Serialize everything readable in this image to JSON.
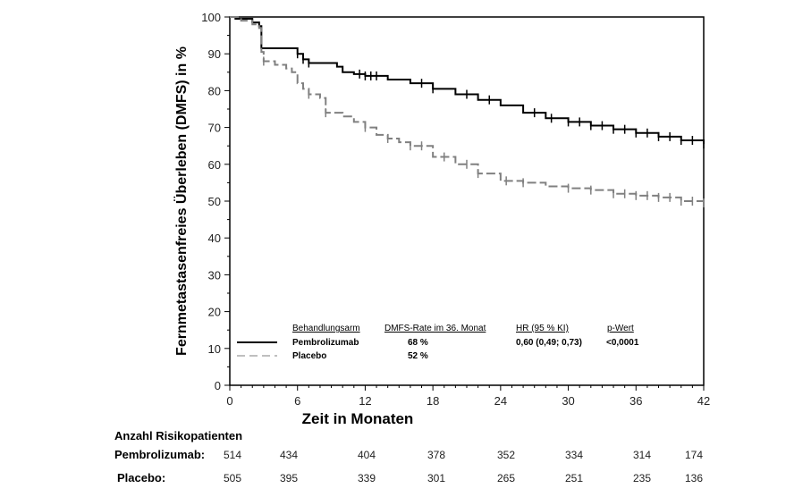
{
  "chart_data": {
    "type": "line",
    "title": "",
    "xlabel": "Zeit in Monaten",
    "ylabel": "Fernmetastasenfreies Überleben (DMFS) in %",
    "xlim": [
      0,
      42
    ],
    "ylim": [
      0,
      100
    ],
    "xticks": [
      0,
      6,
      12,
      18,
      24,
      30,
      36,
      42
    ],
    "yticks": [
      0,
      10,
      20,
      30,
      40,
      50,
      60,
      70,
      80,
      90,
      100
    ],
    "grid": false,
    "step": true,
    "series": [
      {
        "name": "Pembrolizumab",
        "color": "#000000",
        "dash": "solid",
        "x": [
          0,
          0.5,
          2,
          2.6,
          2.8,
          5.5,
          6,
          6.5,
          7,
          9,
          9.5,
          10,
          11,
          12,
          14,
          16,
          18,
          20,
          22,
          24,
          26,
          28,
          30,
          32,
          34,
          36,
          38,
          40,
          42
        ],
        "y": [
          100,
          99.5,
          98.5,
          97.5,
          91.5,
          91.5,
          90,
          88.5,
          87.5,
          87.5,
          86.5,
          85,
          84.5,
          84,
          83,
          82,
          80.5,
          79,
          77.5,
          76,
          74,
          72.5,
          71.5,
          70.5,
          69.5,
          68.5,
          67.5,
          66.5,
          65.5
        ],
        "censored_x": [
          6,
          6.5,
          7,
          11.5,
          12,
          12.5,
          13,
          17,
          18,
          21,
          23,
          27,
          28.5,
          30,
          31,
          32,
          33,
          34,
          35,
          36,
          37,
          38,
          39,
          40,
          41,
          42
        ]
      },
      {
        "name": "Placebo",
        "color": "#808080",
        "dash": "dashed",
        "x": [
          0,
          1,
          2,
          2.6,
          2.8,
          3,
          4,
          5,
          5.5,
          6,
          6.5,
          7,
          8,
          8.5,
          10,
          11,
          12,
          13,
          14,
          15,
          16,
          18,
          20,
          22,
          24,
          26,
          28,
          30,
          32,
          34,
          36,
          38,
          40,
          42
        ],
        "y": [
          100,
          99,
          98,
          97,
          90.5,
          88,
          87,
          86,
          85,
          82,
          80.5,
          79,
          78,
          74,
          73,
          71.5,
          70,
          68,
          67,
          66,
          65,
          62,
          60,
          57.5,
          55.5,
          55,
          54,
          53.5,
          53,
          52,
          51.5,
          51,
          50,
          49.5
        ],
        "censored_x": [
          3,
          7,
          8.5,
          12,
          14,
          16,
          17,
          19,
          21,
          22,
          24.5,
          26,
          30,
          32,
          34,
          35,
          36,
          37,
          38,
          39,
          40,
          41,
          42
        ]
      }
    ],
    "legend": {
      "placement": "bottom-center",
      "headers": [
        "Behandlungsarm",
        "DMFS-Rate im 36. Monat",
        "HR (95 % KI)",
        "p-Wert"
      ],
      "rows": [
        {
          "arm": "Pembrolizumab",
          "rate": "68 %",
          "hr": "0,60 (0,49; 0,73)",
          "p": "<0,0001"
        },
        {
          "arm": "Placebo",
          "rate": "52 %",
          "hr": "",
          "p": ""
        }
      ]
    },
    "risk_table": {
      "title": "Anzahl Risikopatienten",
      "rows": [
        {
          "label": "Pembrolizumab:",
          "values": [
            "514",
            "434",
            "404",
            "378",
            "352",
            "334",
            "314",
            "174"
          ]
        },
        {
          "label": "Placebo:",
          "values": [
            "505",
            "395",
            "339",
            "301",
            "265",
            "251",
            "235",
            "136"
          ]
        }
      ]
    }
  }
}
